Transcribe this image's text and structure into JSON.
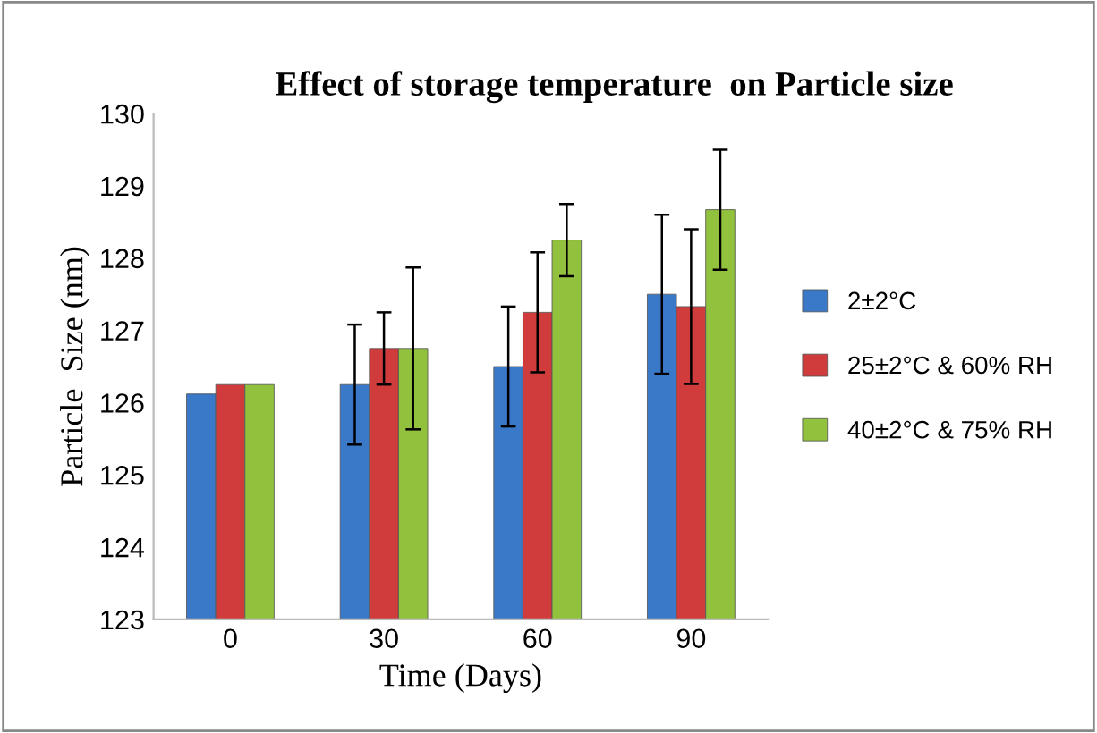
{
  "chart_data": {
    "type": "bar",
    "title": "Effect of storage temperature  on Particle size",
    "xlabel": "Time (Days)",
    "ylabel": "Particle  Size (nm)",
    "categories": [
      "0",
      "30",
      "60",
      "90"
    ],
    "series": [
      {
        "name": "2±2°C",
        "color": "#3a78c8",
        "values": [
          126.12,
          126.25,
          126.5,
          127.5
        ],
        "errors": [
          null,
          0.83,
          0.83,
          1.1
        ]
      },
      {
        "name": "25±2°C & 60% RH",
        "color": "#d03c3c",
        "values": [
          126.25,
          126.75,
          127.25,
          127.33
        ],
        "errors": [
          null,
          0.5,
          0.83,
          1.07
        ]
      },
      {
        "name": "40±2°C & 75% RH",
        "color": "#92c13e",
        "values": [
          126.25,
          126.75,
          128.25,
          128.67
        ],
        "errors": [
          null,
          1.12,
          0.5,
          0.83
        ]
      }
    ],
    "ylim": [
      123,
      130
    ],
    "yticks": [
      123,
      124,
      125,
      126,
      127,
      128,
      129,
      130
    ],
    "grid": false,
    "legend": "right"
  }
}
